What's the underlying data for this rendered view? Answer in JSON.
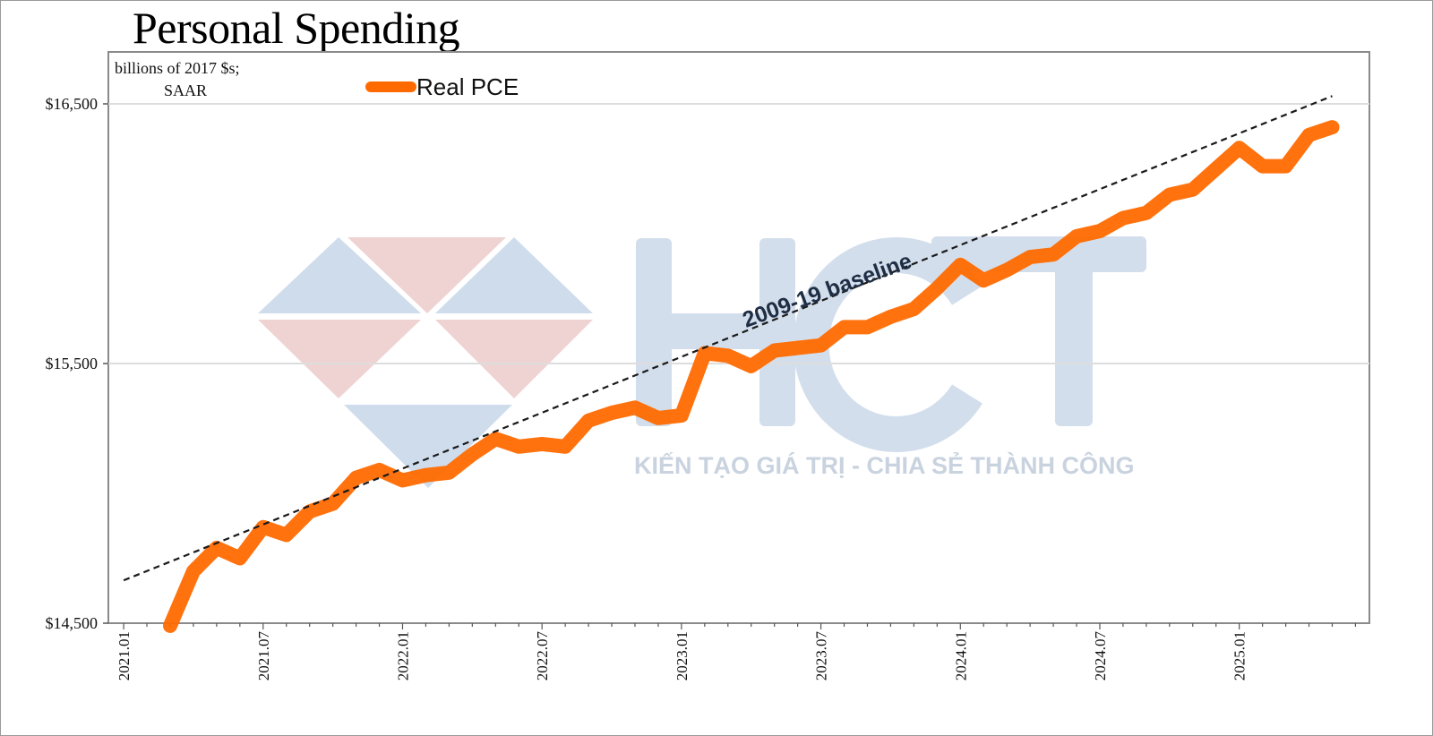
{
  "chart_data": {
    "type": "line",
    "title": "Personal Spending",
    "units_label": [
      "billions of 2017 $s;",
      "SAAR"
    ],
    "ylim": [
      14500,
      16700
    ],
    "yticks": [
      {
        "value": 14500,
        "label": "$14,500"
      },
      {
        "value": 15500,
        "label": "$15,500"
      },
      {
        "value": 16500,
        "label": "$16,500"
      }
    ],
    "xlim": [
      "2021-01",
      "2025-06"
    ],
    "xticks": [
      "2021.01",
      "2021.07",
      "2022.01",
      "2022.07",
      "2023.01",
      "2023.07",
      "2024.01",
      "2024.07",
      "2025.01"
    ],
    "grid": "horizontal",
    "legend_position": "top-left",
    "series": [
      {
        "name": "Real PCE",
        "color": "#ff6a00",
        "x": [
          "2021-03",
          "2021-04",
          "2021-05",
          "2021-06",
          "2021-07",
          "2021-08",
          "2021-09",
          "2021-10",
          "2021-11",
          "2021-12",
          "2022-01",
          "2022-02",
          "2022-03",
          "2022-04",
          "2022-05",
          "2022-06",
          "2022-07",
          "2022-08",
          "2022-09",
          "2022-10",
          "2022-11",
          "2022-12",
          "2023-01",
          "2023-02",
          "2023-03",
          "2023-04",
          "2023-05",
          "2023-06",
          "2023-07",
          "2023-08",
          "2023-09",
          "2023-10",
          "2023-11",
          "2023-12",
          "2024-01",
          "2024-02",
          "2024-03",
          "2024-04",
          "2024-05",
          "2024-06",
          "2024-07",
          "2024-08",
          "2024-09",
          "2024-10",
          "2024-11",
          "2024-12",
          "2025-01",
          "2025-02",
          "2025-03",
          "2025-04",
          "2025-05"
        ],
        "values": [
          14490,
          14700,
          14790,
          14750,
          14870,
          14840,
          14930,
          14960,
          15060,
          15090,
          15050,
          15070,
          15080,
          15150,
          15210,
          15180,
          15190,
          15180,
          15280,
          15310,
          15330,
          15290,
          15300,
          15540,
          15530,
          15490,
          15550,
          15560,
          15570,
          15640,
          15640,
          15680,
          15710,
          15790,
          15880,
          15820,
          15860,
          15910,
          15920,
          15990,
          16010,
          16060,
          16080,
          16150,
          16170,
          16250,
          16330,
          16260,
          16260,
          16380,
          16410
        ]
      }
    ],
    "trendline": {
      "name": "2009-19 baseline",
      "style": "dashed",
      "color": "#1a1a1a",
      "x": [
        "2021-01",
        "2025-05"
      ],
      "values": [
        14665,
        16530
      ]
    }
  },
  "watermark": {
    "logo_text": "HCT",
    "tagline": "KIẾN TẠO GIÁ TRỊ - CHIA SẺ THÀNH CÔNG"
  }
}
